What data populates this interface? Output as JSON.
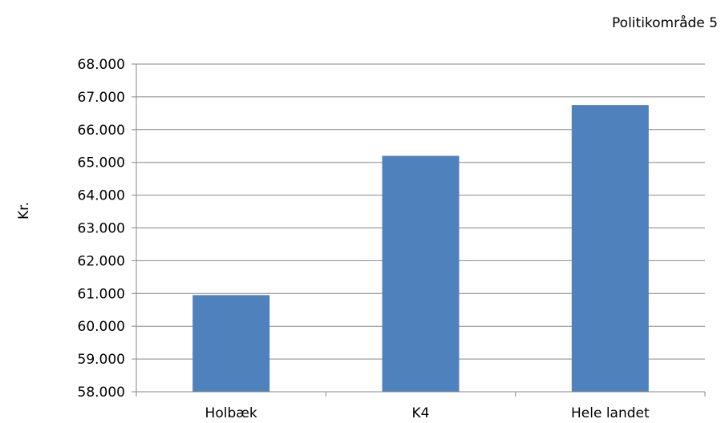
{
  "chart_data": {
    "type": "bar",
    "title": "Politikområde 5",
    "ylabel": "Kr.",
    "xlabel": "",
    "categories": [
      "Holbæk",
      "K4",
      "Hele landet"
    ],
    "values": [
      60950,
      65200,
      66750
    ],
    "ylim": [
      58000,
      68000
    ],
    "yticks": [
      "58.000",
      "59.000",
      "60.000",
      "61.000",
      "62.000",
      "63.000",
      "64.000",
      "65.000",
      "66.000",
      "67.000",
      "68.000"
    ],
    "grid": true,
    "legend": "none",
    "colors": {
      "bar": "#4f81bd",
      "grid": "#878787",
      "axis": "#878787"
    }
  }
}
